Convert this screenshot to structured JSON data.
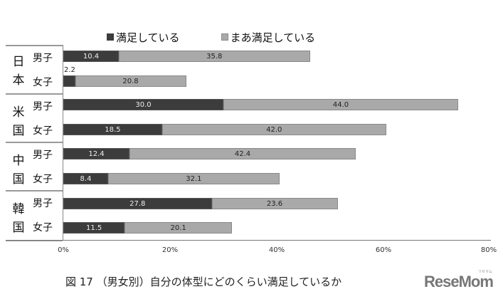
{
  "chart_data": {
    "type": "bar",
    "orientation": "horizontal",
    "stacked": true,
    "title": "図 17 （男女別）自分の体型にどのくらい満足しているか",
    "xlabel": "",
    "ylabel": "",
    "xlim": [
      0,
      80
    ],
    "x_ticks": [
      "0%",
      "20%",
      "40%",
      "60%",
      "80%"
    ],
    "legend_position": "top",
    "grid": false,
    "groups": [
      {
        "country": "日本",
        "chars": [
          "日",
          "本"
        ]
      },
      {
        "country": "米国",
        "chars": [
          "米",
          "国"
        ]
      },
      {
        "country": "中国",
        "chars": [
          "中",
          "国"
        ]
      },
      {
        "country": "韓国",
        "chars": [
          "韓",
          "国"
        ]
      }
    ],
    "categories": [
      "日本 男子",
      "日本 女子",
      "米国 男子",
      "米国 女子",
      "中国 男子",
      "中国 女子",
      "韓国 男子",
      "韓国 女子"
    ],
    "genders": [
      "男子",
      "女子"
    ],
    "series": [
      {
        "name": "満足している",
        "color": "#3c3c3c",
        "values": [
          10.4,
          2.2,
          30.0,
          18.5,
          12.4,
          8.4,
          27.8,
          11.5
        ]
      },
      {
        "name": "まあ満足している",
        "color": "#a9a9a9",
        "values": [
          35.8,
          20.8,
          44.0,
          42.0,
          42.4,
          32.1,
          23.6,
          20.1
        ]
      }
    ],
    "labels": [
      [
        "10.4",
        "2.2",
        "30.0",
        "18.5",
        "12.4",
        "8.4",
        "27.8",
        "11.5"
      ],
      [
        "35.8",
        "20.8",
        "44.0",
        "42.0",
        "42.4",
        "32.1",
        "23.6",
        "20.1"
      ]
    ]
  },
  "legend": {
    "satisfied": "満足している",
    "somewhat": "まあ満足している",
    "satisfied_color": "#3c3c3c",
    "somewhat_color": "#a9a9a9"
  },
  "caption": "図 17 （男女別）自分の体型にどのくらい満足しているか",
  "logo": {
    "text": "ReseMom",
    "ruby": "リセマム"
  }
}
